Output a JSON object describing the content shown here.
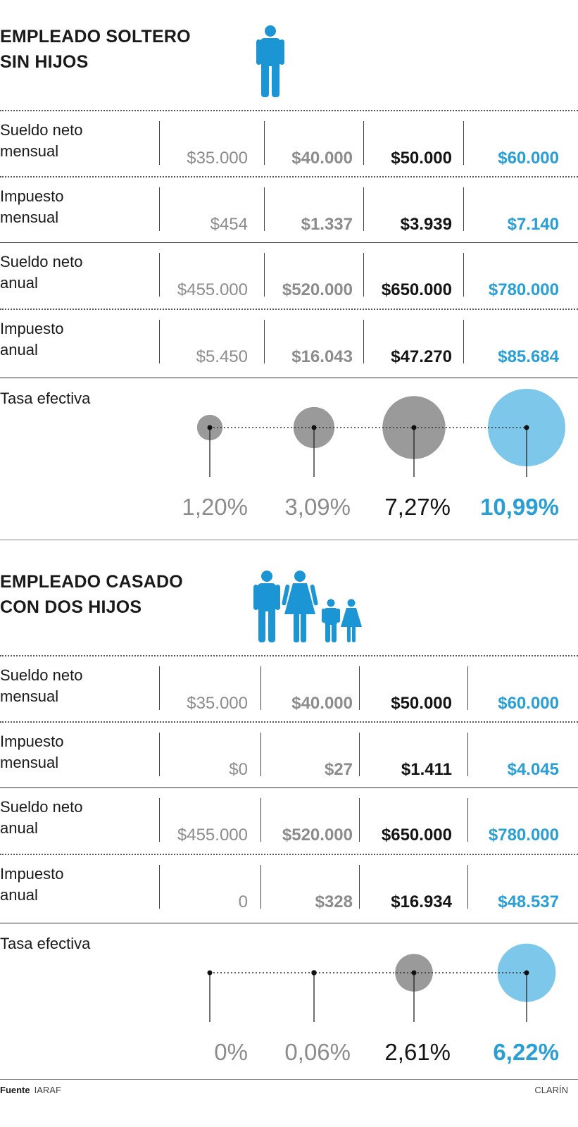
{
  "colors": {
    "gray": "#8c8c8c",
    "black": "#141414",
    "blue": "#2a9fd6",
    "circle_gray": "#9a9a9a",
    "circle_blue": "#7cc7ea"
  },
  "sections": [
    {
      "title_lines": [
        "EMPLEADO SOLTERO",
        "SIN HIJOS"
      ],
      "icon": "single-man-icon",
      "rows": [
        {
          "label_lines": [
            "Sueldo neto",
            "mensual"
          ],
          "values": [
            "$35.000",
            "$40.000",
            "$50.000",
            "$60.000"
          ]
        },
        {
          "label_lines": [
            "Impuesto",
            "mensual"
          ],
          "values": [
            "$454",
            "$1.337",
            "$3.939",
            "$7.140"
          ]
        },
        {
          "label_lines": [
            "Sueldo neto",
            "anual"
          ],
          "values": [
            "$455.000",
            "$520.000",
            "$650.000",
            "$780.000"
          ]
        },
        {
          "label_lines": [
            "Impuesto",
            "anual"
          ],
          "values": [
            "$5.450",
            "$16.043",
            "$47.270",
            "$85.684"
          ]
        }
      ],
      "tasa_label": "Tasa efectiva",
      "tasa_values": [
        "1,20%",
        "3,09%",
        "7,27%",
        "10,99%"
      ]
    },
    {
      "title_lines": [
        "EMPLEADO CASADO",
        "CON DOS HIJOS"
      ],
      "icon": "family-icon",
      "rows": [
        {
          "label_lines": [
            "Sueldo neto",
            "mensual"
          ],
          "values": [
            "$35.000",
            "$40.000",
            "$50.000",
            "$60.000"
          ]
        },
        {
          "label_lines": [
            "Impuesto",
            "mensual"
          ],
          "values": [
            "$0",
            "$27",
            "$1.411",
            "$4.045"
          ]
        },
        {
          "label_lines": [
            "Sueldo neto",
            "anual"
          ],
          "values": [
            "$455.000",
            "$520.000",
            "$650.000",
            "$780.000"
          ]
        },
        {
          "label_lines": [
            "Impuesto",
            "anual"
          ],
          "values": [
            "0",
            "$328",
            "$16.934",
            "$48.537"
          ]
        }
      ],
      "tasa_label": "Tasa efectiva",
      "tasa_values": [
        "0%",
        "0,06%",
        "2,61%",
        "6,22%"
      ]
    }
  ],
  "chart_data": [
    {
      "type": "bubble",
      "title": "Tasa efectiva - Empleado soltero sin hijos",
      "categories": [
        "$35.000",
        "$40.000",
        "$50.000",
        "$60.000"
      ],
      "values": [
        1.2,
        3.09,
        7.27,
        10.99
      ],
      "unit": "%"
    },
    {
      "type": "bubble",
      "title": "Tasa efectiva - Empleado casado con dos hijos",
      "categories": [
        "$35.000",
        "$40.000",
        "$50.000",
        "$60.000"
      ],
      "values": [
        0,
        0.06,
        2.61,
        6.22
      ],
      "unit": "%"
    }
  ],
  "footer": {
    "source_label": "Fuente",
    "source": "IARAF",
    "brand": "CLARÍN"
  }
}
